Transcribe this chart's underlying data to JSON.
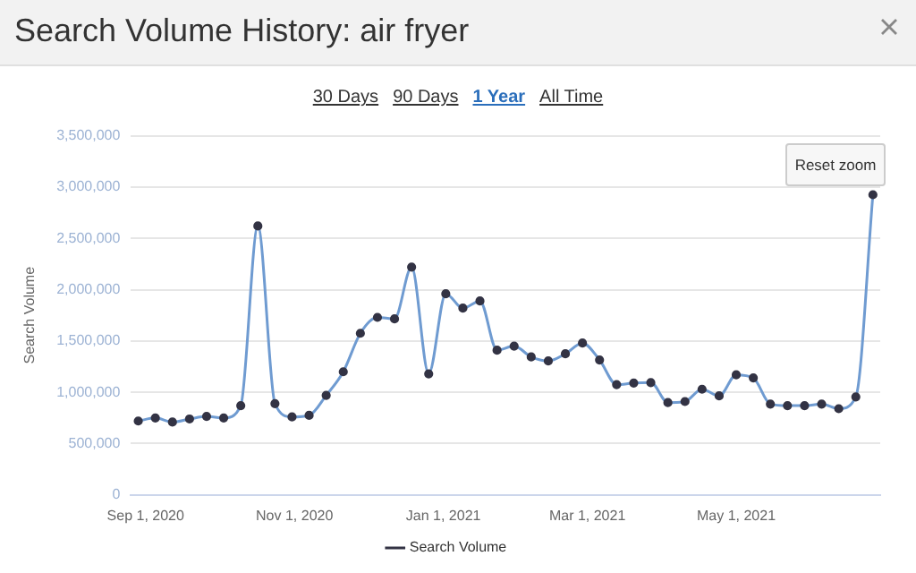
{
  "chart_data": {
    "type": "line",
    "title": "Search Volume History: air fryer",
    "ylabel": "Search Volume",
    "annotations": [
      "30 Days",
      "90 Days",
      "1 Year",
      "All Time",
      "Reset zoom"
    ],
    "xlim": [
      "2020-08-26",
      "2021-06-29"
    ],
    "xticks": [
      {
        "value": "2020-09-01",
        "label": "Sep 1, 2020"
      },
      {
        "value": "2020-11-01",
        "label": "Nov 1, 2020"
      },
      {
        "value": "2021-01-01",
        "label": "Jan 1, 2021"
      },
      {
        "value": "2021-03-01",
        "label": "Mar 1, 2021"
      },
      {
        "value": "2021-05-01",
        "label": "May 1, 2021"
      }
    ],
    "ylim": [
      0,
      3500000
    ],
    "yticks": [
      {
        "value": 0,
        "label": "0"
      },
      {
        "value": 500000,
        "label": "500,000"
      },
      {
        "value": 1000000,
        "label": "1,000,000"
      },
      {
        "value": 1500000,
        "label": "1,500,000"
      },
      {
        "value": 2000000,
        "label": "2,000,000"
      },
      {
        "value": 2500000,
        "label": "2,500,000"
      },
      {
        "value": 3000000,
        "label": "3,000,000"
      },
      {
        "value": 3500000,
        "label": "3,500,000"
      }
    ],
    "x": [
      "2020-08-29",
      "2020-09-05",
      "2020-09-12",
      "2020-09-19",
      "2020-09-26",
      "2020-10-03",
      "2020-10-10",
      "2020-10-17",
      "2020-10-24",
      "2020-10-31",
      "2020-11-07",
      "2020-11-14",
      "2020-11-21",
      "2020-11-28",
      "2020-12-05",
      "2020-12-12",
      "2020-12-19",
      "2020-12-26",
      "2021-01-02",
      "2021-01-09",
      "2021-01-16",
      "2021-01-23",
      "2021-01-30",
      "2021-02-06",
      "2021-02-13",
      "2021-02-20",
      "2021-02-27",
      "2021-03-06",
      "2021-03-13",
      "2021-03-20",
      "2021-03-27",
      "2021-04-03",
      "2021-04-10",
      "2021-04-17",
      "2021-04-24",
      "2021-05-01",
      "2021-05-08",
      "2021-05-15",
      "2021-05-22",
      "2021-05-29",
      "2021-06-05",
      "2021-06-12",
      "2021-06-19",
      "2021-06-26"
    ],
    "series": [
      {
        "name": "Search Volume",
        "color": "#6f9bd1",
        "values": [
          720000,
          750000,
          710000,
          740000,
          765000,
          750000,
          870000,
          2620000,
          890000,
          760000,
          775000,
          970000,
          1200000,
          1575000,
          1730000,
          1715000,
          2220000,
          1180000,
          1960000,
          1820000,
          1890000,
          1410000,
          1450000,
          1345000,
          1305000,
          1375000,
          1480000,
          1315000,
          1075000,
          1090000,
          1095000,
          900000,
          910000,
          1030000,
          965000,
          1170000,
          1140000,
          885000,
          870000,
          870000,
          885000,
          840000,
          955000,
          2925000
        ]
      }
    ],
    "grid": "y",
    "legend": "bottom",
    "marker": "circle",
    "line_style": "solid"
  }
}
